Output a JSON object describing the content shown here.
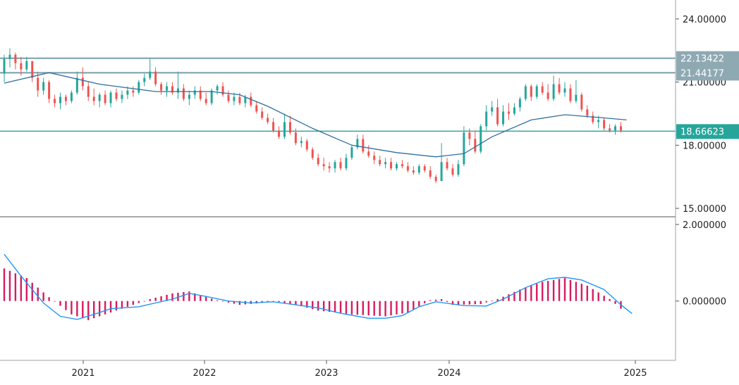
{
  "chart_data": [
    {
      "type": "candlestick",
      "panel": "price",
      "y_tick_labels": [
        "24.00000",
        "21.00000",
        "18.00000",
        "15.00000"
      ],
      "y_ticks": [
        24,
        21,
        18,
        15
      ],
      "ylim": [
        14.6,
        24.9
      ],
      "grid": false,
      "candle_colors": {
        "up": "#26a69a",
        "down": "#ef5350"
      },
      "candles": [
        [
          21.4,
          22.3,
          21.0,
          22.1
        ],
        [
          22.1,
          22.6,
          21.7,
          22.3
        ],
        [
          22.3,
          22.4,
          21.6,
          21.9
        ],
        [
          21.9,
          22.2,
          21.3,
          21.6
        ],
        [
          21.6,
          22.2,
          21.5,
          22.0
        ],
        [
          22.0,
          22.0,
          21.0,
          21.2
        ],
        [
          21.2,
          21.5,
          20.3,
          20.6
        ],
        [
          20.6,
          21.2,
          20.4,
          21.0
        ],
        [
          21.0,
          21.1,
          20.0,
          20.2
        ],
        [
          20.2,
          20.4,
          19.8,
          20.0
        ],
        [
          20.0,
          20.5,
          19.7,
          20.3
        ],
        [
          20.3,
          20.4,
          19.9,
          20.1
        ],
        [
          20.1,
          20.6,
          20.0,
          20.5
        ],
        [
          20.5,
          21.5,
          20.4,
          21.2
        ],
        [
          21.2,
          21.7,
          20.6,
          20.8
        ],
        [
          20.8,
          21.0,
          20.1,
          20.3
        ],
        [
          20.3,
          20.7,
          19.9,
          20.1
        ],
        [
          20.1,
          20.5,
          19.8,
          20.4
        ],
        [
          20.4,
          20.6,
          19.9,
          20.0
        ],
        [
          20.0,
          20.6,
          19.8,
          20.5
        ],
        [
          20.5,
          20.7,
          20.1,
          20.2
        ],
        [
          20.2,
          20.6,
          20.0,
          20.4
        ],
        [
          20.4,
          20.8,
          20.2,
          20.6
        ],
        [
          20.6,
          20.8,
          20.3,
          20.5
        ],
        [
          20.5,
          21.1,
          20.4,
          21.0
        ],
        [
          21.0,
          21.4,
          20.8,
          21.2
        ],
        [
          21.2,
          22.1,
          21.1,
          21.5
        ],
        [
          21.5,
          21.7,
          20.8,
          20.9
        ],
        [
          20.9,
          21.0,
          20.4,
          20.6
        ],
        [
          20.6,
          21.0,
          20.3,
          20.8
        ],
        [
          20.8,
          21.0,
          20.4,
          20.5
        ],
        [
          20.5,
          21.5,
          20.2,
          20.7
        ],
        [
          20.7,
          20.9,
          20.1,
          20.2
        ],
        [
          20.2,
          20.6,
          19.9,
          20.4
        ],
        [
          20.4,
          20.8,
          20.2,
          20.6
        ],
        [
          20.6,
          20.8,
          20.1,
          20.2
        ],
        [
          20.2,
          20.5,
          19.9,
          20.0
        ],
        [
          20.0,
          20.7,
          19.9,
          20.6
        ],
        [
          20.6,
          20.9,
          20.4,
          20.8
        ],
        [
          20.8,
          21.0,
          20.3,
          20.4
        ],
        [
          20.4,
          20.6,
          20.0,
          20.1
        ],
        [
          20.1,
          20.5,
          19.9,
          20.3
        ],
        [
          20.3,
          20.5,
          19.9,
          20.0
        ],
        [
          20.0,
          20.4,
          19.8,
          20.3
        ],
        [
          20.3,
          20.5,
          19.8,
          19.9
        ],
        [
          19.9,
          20.1,
          19.5,
          19.6
        ],
        [
          19.6,
          19.8,
          19.2,
          19.3
        ],
        [
          19.3,
          19.5,
          19.0,
          19.1
        ],
        [
          19.1,
          19.3,
          18.6,
          18.7
        ],
        [
          18.7,
          18.9,
          18.3,
          18.4
        ],
        [
          18.4,
          19.5,
          18.3,
          19.1
        ],
        [
          19.1,
          19.4,
          18.5,
          18.6
        ],
        [
          18.6,
          18.8,
          18.0,
          18.1
        ],
        [
          18.1,
          18.4,
          17.9,
          18.2
        ],
        [
          18.2,
          18.3,
          17.7,
          17.8
        ],
        [
          17.8,
          17.9,
          17.3,
          17.4
        ],
        [
          17.4,
          17.6,
          17.0,
          17.1
        ],
        [
          17.1,
          17.4,
          16.8,
          17.0
        ],
        [
          17.0,
          17.2,
          16.7,
          16.9
        ],
        [
          16.9,
          17.3,
          16.7,
          17.2
        ],
        [
          17.2,
          17.4,
          16.8,
          16.9
        ],
        [
          16.9,
          17.6,
          16.8,
          17.4
        ],
        [
          17.4,
          18.0,
          17.3,
          17.9
        ],
        [
          17.9,
          18.5,
          17.8,
          18.3
        ],
        [
          18.3,
          18.5,
          17.6,
          17.7
        ],
        [
          17.7,
          18.0,
          17.4,
          17.5
        ],
        [
          17.5,
          17.7,
          17.1,
          17.3
        ],
        [
          17.3,
          17.5,
          17.0,
          17.1
        ],
        [
          17.1,
          17.4,
          16.9,
          17.2
        ],
        [
          17.2,
          17.4,
          16.8,
          16.9
        ],
        [
          16.9,
          17.2,
          16.8,
          17.1
        ],
        [
          17.1,
          17.3,
          16.9,
          17.0
        ],
        [
          17.0,
          17.2,
          16.7,
          16.8
        ],
        [
          16.8,
          17.0,
          16.6,
          16.7
        ],
        [
          16.7,
          17.1,
          16.6,
          17.0
        ],
        [
          17.0,
          17.1,
          16.7,
          16.8
        ],
        [
          16.8,
          17.0,
          16.4,
          16.5
        ],
        [
          16.5,
          16.6,
          16.2,
          16.3
        ],
        [
          16.3,
          18.1,
          16.3,
          17.2
        ],
        [
          17.2,
          17.4,
          16.8,
          16.9
        ],
        [
          16.9,
          17.1,
          16.5,
          16.6
        ],
        [
          16.6,
          17.3,
          16.5,
          17.1
        ],
        [
          17.1,
          18.9,
          17.0,
          18.6
        ],
        [
          18.6,
          18.8,
          18.0,
          18.3
        ],
        [
          18.3,
          18.7,
          17.6,
          17.7
        ],
        [
          17.7,
          19.0,
          17.6,
          18.9
        ],
        [
          18.9,
          19.9,
          18.7,
          19.6
        ],
        [
          19.6,
          20.1,
          19.4,
          19.8
        ],
        [
          19.8,
          20.2,
          18.9,
          19.0
        ],
        [
          19.0,
          19.9,
          18.9,
          19.6
        ],
        [
          19.6,
          20.0,
          19.2,
          19.5
        ],
        [
          19.5,
          20.0,
          19.4,
          19.8
        ],
        [
          19.8,
          20.3,
          19.6,
          20.2
        ],
        [
          20.2,
          20.9,
          20.1,
          20.8
        ],
        [
          20.8,
          20.9,
          20.1,
          20.3
        ],
        [
          20.3,
          20.9,
          20.2,
          20.8
        ],
        [
          20.8,
          21.0,
          20.4,
          20.5
        ],
        [
          20.5,
          20.9,
          20.1,
          20.2
        ],
        [
          20.2,
          21.3,
          20.1,
          20.9
        ],
        [
          20.9,
          21.2,
          20.4,
          20.5
        ],
        [
          20.5,
          21.0,
          20.3,
          20.7
        ],
        [
          20.7,
          20.9,
          20.0,
          20.1
        ],
        [
          20.1,
          21.1,
          20.0,
          20.4
        ],
        [
          20.4,
          20.5,
          19.6,
          19.7
        ],
        [
          19.7,
          19.9,
          19.3,
          19.4
        ],
        [
          19.4,
          19.6,
          19.0,
          19.1
        ],
        [
          19.1,
          19.4,
          18.8,
          19.2
        ],
        [
          19.2,
          19.3,
          18.7,
          18.8
        ],
        [
          18.8,
          19.0,
          18.6,
          18.7
        ],
        [
          18.7,
          19.0,
          18.5,
          18.9
        ],
        [
          18.9,
          19.1,
          18.6,
          18.7
        ]
      ],
      "ma": [
        [
          0,
          20.95
        ],
        [
          8,
          21.45
        ],
        [
          17,
          20.9
        ],
        [
          27,
          20.55
        ],
        [
          37,
          20.55
        ],
        [
          42,
          20.4
        ],
        [
          47,
          19.85
        ],
        [
          55,
          18.8
        ],
        [
          62,
          18.0
        ],
        [
          70,
          17.65
        ],
        [
          77,
          17.45
        ],
        [
          82,
          17.6
        ],
        [
          87,
          18.4
        ],
        [
          94,
          19.2
        ],
        [
          100,
          19.45
        ],
        [
          107,
          19.3
        ],
        [
          111,
          19.2
        ]
      ],
      "horizontal_lines": [
        {
          "value": 22.13422,
          "label": "22.13422"
        },
        {
          "value": 21.44177,
          "label": "21.44177"
        },
        {
          "value": 18.66623,
          "label": "18.66623"
        }
      ]
    },
    {
      "type": "histogram",
      "panel": "oscillator",
      "y_tick_labels": [
        "2.000000",
        "0.000000"
      ],
      "y_ticks": [
        2,
        0
      ],
      "ylim": [
        -1.55,
        2.2
      ],
      "grid": false,
      "bar_color": "#d81b60",
      "line_color": "#2196f3",
      "histogram": [
        [
          0,
          0.85
        ],
        [
          4,
          0.6
        ],
        [
          8,
          0.1
        ],
        [
          12,
          -0.35
        ],
        [
          15,
          -0.5
        ],
        [
          18,
          -0.35
        ],
        [
          22,
          -0.15
        ],
        [
          26,
          0.05
        ],
        [
          30,
          0.2
        ],
        [
          33,
          0.25
        ],
        [
          35,
          0.15
        ],
        [
          38,
          0.02
        ],
        [
          42,
          -0.1
        ],
        [
          46,
          -0.05
        ],
        [
          48,
          0.0
        ],
        [
          52,
          -0.1
        ],
        [
          56,
          -0.25
        ],
        [
          62,
          -0.35
        ],
        [
          68,
          -0.4
        ],
        [
          72,
          -0.3
        ],
        [
          76,
          0.02
        ],
        [
          78,
          0.05
        ],
        [
          80,
          -0.1
        ],
        [
          85,
          -0.08
        ],
        [
          88,
          0.05
        ],
        [
          92,
          0.3
        ],
        [
          96,
          0.5
        ],
        [
          100,
          0.6
        ],
        [
          104,
          0.4
        ],
        [
          108,
          0.05
        ],
        [
          110,
          -0.2
        ],
        [
          112,
          -0.3
        ]
      ],
      "signal": [
        [
          0,
          1.22
        ],
        [
          3,
          0.65
        ],
        [
          7,
          -0.05
        ],
        [
          10,
          -0.4
        ],
        [
          13,
          -0.48
        ],
        [
          16,
          -0.35
        ],
        [
          19,
          -0.2
        ],
        [
          24,
          -0.15
        ],
        [
          30,
          0.05
        ],
        [
          33,
          0.2
        ],
        [
          36,
          0.12
        ],
        [
          40,
          0.0
        ],
        [
          44,
          -0.05
        ],
        [
          48,
          -0.02
        ],
        [
          52,
          -0.1
        ],
        [
          56,
          -0.18
        ],
        [
          60,
          -0.32
        ],
        [
          65,
          -0.45
        ],
        [
          68,
          -0.45
        ],
        [
          71,
          -0.38
        ],
        [
          74,
          -0.15
        ],
        [
          77,
          -0.02
        ],
        [
          82,
          -0.12
        ],
        [
          86,
          -0.13
        ],
        [
          89,
          0.05
        ],
        [
          93,
          0.35
        ],
        [
          97,
          0.58
        ],
        [
          100,
          0.62
        ],
        [
          103,
          0.55
        ],
        [
          107,
          0.3
        ],
        [
          110,
          -0.1
        ],
        [
          112,
          -0.33
        ]
      ]
    }
  ],
  "x_tick_labels": [
    "2021",
    "2022",
    "2023",
    "2024",
    "2025"
  ]
}
